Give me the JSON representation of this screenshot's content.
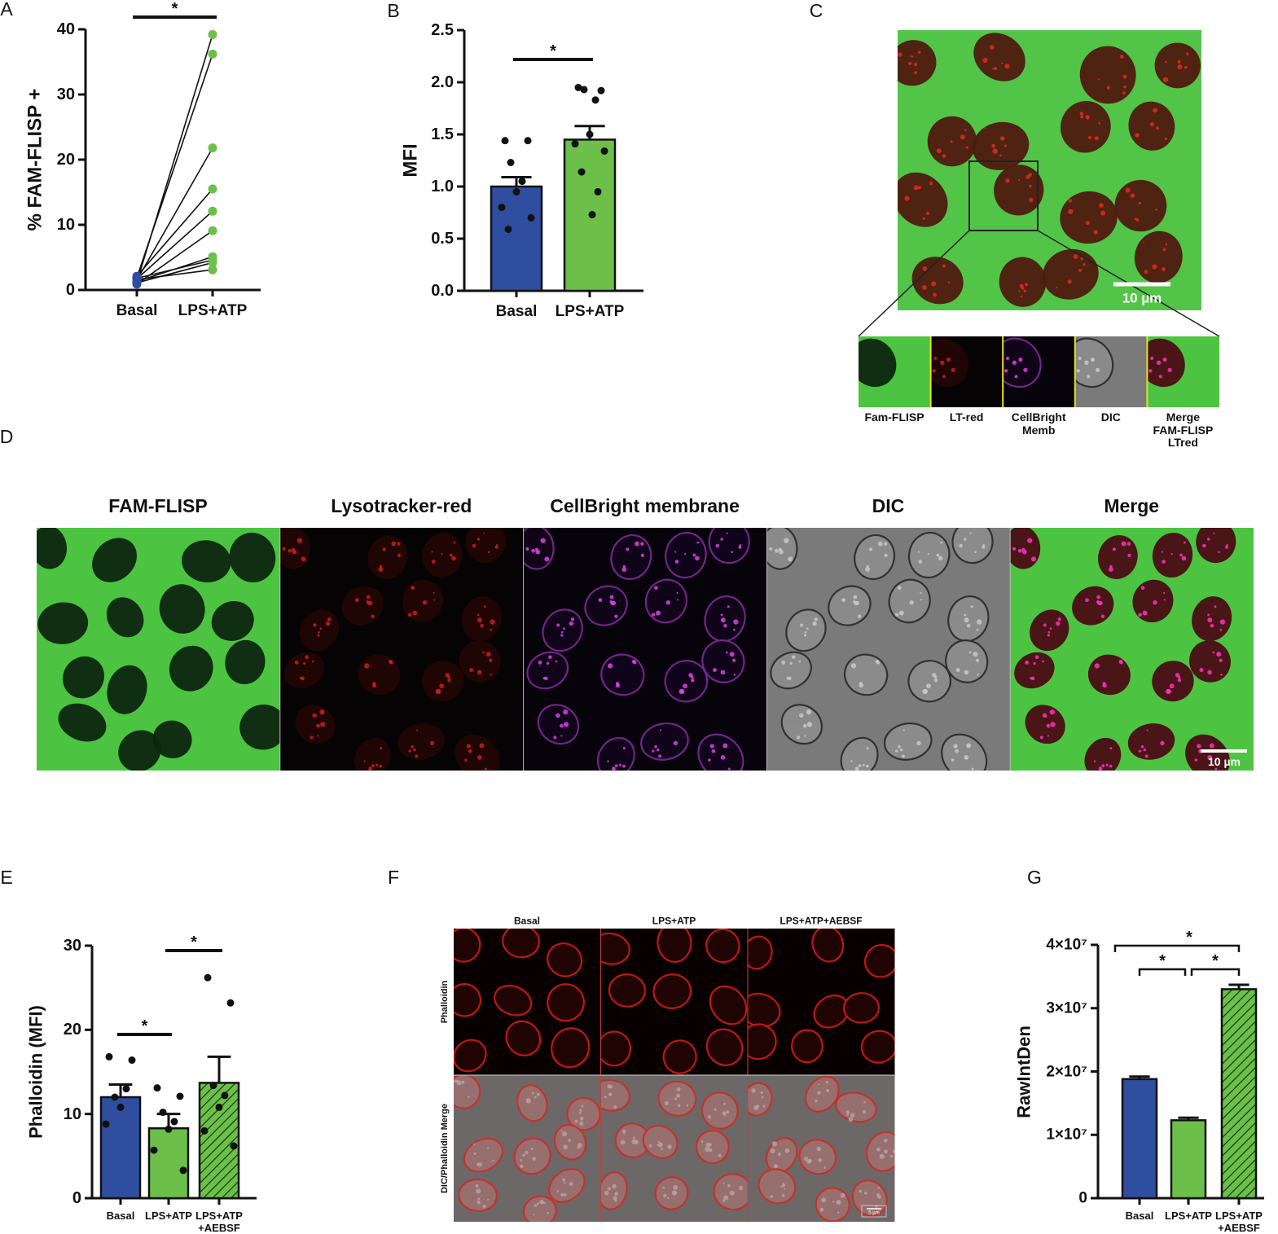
{
  "chart_data": [
    {
      "panel": "A",
      "type": "paired",
      "y_label": "% FAM-FLISP +",
      "categories": [
        "Basal",
        "LPS+ATP"
      ],
      "colors": [
        "#2f4ea0",
        "#6cc04a"
      ],
      "values": [
        [
          1.2,
          1.9,
          1.5,
          2.1,
          1.7,
          0.9,
          1.3,
          1.8,
          1.1,
          1.6
        ],
        [
          39.2,
          36.2,
          21.8,
          15.5,
          12.1,
          9.1,
          5.1,
          4.6,
          4.2,
          3.1
        ]
      ],
      "ylim": [
        0,
        40
      ],
      "yticks": [
        0,
        10,
        20,
        30,
        40
      ],
      "significance": [
        {
          "between": [
            "Basal",
            "LPS+ATP"
          ],
          "label": "*"
        }
      ]
    },
    {
      "panel": "B",
      "type": "bar",
      "y_label": "MFI",
      "categories": [
        "Basal",
        "LPS+ATP"
      ],
      "colors": [
        "#2f4ea0",
        "#6cc04a"
      ],
      "hatched": [
        false,
        false
      ],
      "values": [
        1.0,
        1.45
      ],
      "errors": [
        0.09,
        0.13
      ],
      "points": [
        [
          1.44,
          1.44,
          1.23,
          1.05,
          0.95,
          0.8,
          0.7,
          0.59
        ],
        [
          1.95,
          1.92,
          1.93,
          1.83,
          1.5,
          1.41,
          1.34,
          1.14,
          0.95,
          0.73
        ]
      ],
      "ylim": [
        0,
        2.5
      ],
      "yticks": [
        {
          "value": 0,
          "label": "0.0"
        },
        0.5,
        {
          "value": 1,
          "label": "1.0"
        },
        1.5,
        {
          "value": 2,
          "label": "2.0"
        },
        2.5
      ],
      "significance": [
        {
          "between": [
            "Basal",
            "LPS+ATP"
          ],
          "label": "*"
        }
      ]
    },
    {
      "panel": "E",
      "type": "bar",
      "y_label": "Phalloidin (MFI)",
      "categories": [
        "Basal",
        "LPS+ATP",
        "LPS+ATP\n+AEBSF"
      ],
      "colors": [
        "#2f4ea0",
        "#6cc04a",
        "#6cc04a"
      ],
      "hatched": [
        false,
        false,
        true
      ],
      "values": [
        12.0,
        8.3,
        13.7
      ],
      "errors": [
        1.5,
        1.7,
        3.1
      ],
      "points": [
        [
          16.8,
          16.4,
          12.0,
          13.0,
          10.8,
          8.8
        ],
        [
          13.1,
          12.1,
          10.2,
          9.1,
          8.2,
          5.7,
          3.3
        ],
        [
          26.2,
          23.2,
          13.4,
          12.2,
          10.8,
          8.0,
          6.2
        ]
      ],
      "ylim": [
        0,
        30
      ],
      "yticks": [
        0,
        10,
        20,
        30
      ],
      "significance": [
        {
          "between": [
            "Basal",
            "LPS+ATP"
          ],
          "label": "*"
        },
        {
          "between": [
            "LPS+ATP",
            "LPS+ATP\n+AEBSF"
          ],
          "label": "*"
        }
      ]
    },
    {
      "panel": "G",
      "type": "bar",
      "y_label": "RawIntDen",
      "categories": [
        "Basal",
        "LPS+ATP",
        "LPS+ATP\n+AEBSF"
      ],
      "colors": [
        "#2f4ea0",
        "#6cc04a",
        "#6cc04a"
      ],
      "hatched": [
        false,
        false,
        true
      ],
      "values": [
        18800000,
        12300000,
        33000000
      ],
      "errors": [
        400000,
        400000,
        700000
      ],
      "ylim": [
        0,
        40000000
      ],
      "yticks": [
        0,
        {
          "value": 10000000,
          "label": "1×10⁷"
        },
        {
          "value": 20000000,
          "label": "2×10⁷"
        },
        {
          "value": 30000000,
          "label": "3×10⁷"
        },
        {
          "value": 40000000,
          "label": "4×10⁷"
        }
      ],
      "significance": [
        {
          "between": [
            "Basal",
            "LPS+ATP\n+AEBSF"
          ],
          "label": "*"
        },
        {
          "between": [
            "Basal",
            "LPS+ATP"
          ],
          "label": "*"
        },
        {
          "between": [
            "LPS+ATP",
            "LPS+ATP\n+AEBSF"
          ],
          "label": "*"
        }
      ]
    }
  ],
  "panel_c": {
    "label": "C",
    "scale_bar": "10 µm",
    "insets": [
      "Fam-FLISP",
      "LT-red",
      "CellBright\nMemb",
      "DIC",
      "Merge\nFAM-FLISP\nLTred"
    ]
  },
  "panel_d": {
    "label": "D",
    "columns": [
      "FAM-FLISP",
      "Lysotracker-red",
      "CellBright membrane",
      "DIC",
      "Merge"
    ],
    "scale_bar": "10 µm"
  },
  "panel_f": {
    "label": "F",
    "columns": [
      "Basal",
      "LPS+ATP",
      "LPS+ATP+AEBSF"
    ],
    "rows": [
      "Phalloidin",
      "DIC/Phalloidin Merge"
    ],
    "scale_bar": "5 µm"
  }
}
